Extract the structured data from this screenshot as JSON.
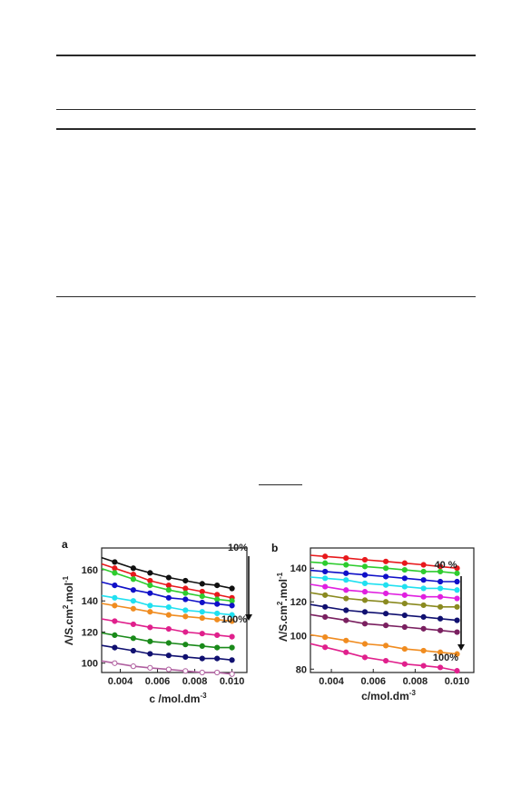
{
  "chart_data": [
    {
      "type": "scatter",
      "panel_label": "a",
      "xlabel": "c /mol.dm",
      "xlabel_sup": "-3",
      "ylabel_parts": [
        "Λ/S.cm",
        "2",
        ".mol",
        "-1"
      ],
      "xlim": [
        0.003,
        0.0108
      ],
      "ylim": [
        94,
        174
      ],
      "xticks": [
        "0.004",
        "0.006",
        "0.008",
        "0.010"
      ],
      "xtick_values": [
        0.004,
        0.006,
        0.008,
        0.01
      ],
      "yticks": [
        "100",
        "120",
        "140",
        "160"
      ],
      "ytick_values": [
        100,
        120,
        140,
        160
      ],
      "x": [
        0.0037,
        0.0047,
        0.0056,
        0.0066,
        0.0075,
        0.0084,
        0.0092,
        0.01
      ],
      "annotation_top": "10%",
      "annotation_bottom": "100%",
      "series": [
        {
          "color": "#111111",
          "fill": "filled",
          "values": [
            165,
            161,
            158,
            155,
            153,
            151,
            150,
            148
          ]
        },
        {
          "color": "#e8191c",
          "fill": "filled",
          "values": [
            161,
            157,
            153,
            150,
            148,
            146,
            144,
            142
          ]
        },
        {
          "color": "#2ecc2e",
          "fill": "filled",
          "values": [
            158,
            154,
            150,
            147,
            145,
            143,
            141,
            140
          ]
        },
        {
          "color": "#1010c8",
          "fill": "filled",
          "values": [
            150,
            147,
            145,
            142,
            141,
            139,
            138,
            137
          ]
        },
        {
          "color": "#20e0f0",
          "fill": "filled",
          "values": [
            142,
            140,
            137,
            136,
            134,
            133,
            132,
            131
          ]
        },
        {
          "color": "#f08c20",
          "fill": "filled",
          "values": [
            137,
            135,
            133,
            131,
            130,
            129,
            128,
            127
          ]
        },
        {
          "color": "#e0208c",
          "fill": "filled",
          "values": [
            127,
            125,
            123,
            122,
            120,
            119,
            118,
            117
          ]
        },
        {
          "color": "#1a8a1a",
          "fill": "filled",
          "values": [
            118,
            116,
            114,
            113,
            112,
            111,
            110,
            110
          ]
        },
        {
          "color": "#101070",
          "fill": "filled",
          "values": [
            110,
            108,
            106,
            105,
            104,
            103,
            103,
            102
          ]
        },
        {
          "color": "#b060a0",
          "fill": "open",
          "values": [
            100,
            98,
            97,
            96,
            95,
            94,
            94,
            93
          ]
        }
      ]
    },
    {
      "type": "scatter",
      "panel_label": "b",
      "xlabel": "c/mol.dm",
      "xlabel_sup": "-3",
      "ylabel_parts": [
        "Λ/S.cm",
        "2",
        ".mol",
        "-1"
      ],
      "xlim": [
        0.003,
        0.0108
      ],
      "ylim": [
        78,
        152
      ],
      "xticks": [
        "0.004",
        "0.006",
        "0.008",
        "0.010"
      ],
      "xtick_values": [
        0.004,
        0.006,
        0.008,
        0.01
      ],
      "yticks": [
        "80",
        "100",
        "120",
        "140"
      ],
      "ytick_values": [
        80,
        100,
        120,
        140
      ],
      "x": [
        0.0037,
        0.0047,
        0.0056,
        0.0066,
        0.0075,
        0.0084,
        0.0092,
        0.01
      ],
      "annotation_top": "40 %",
      "annotation_bottom": "100%",
      "series": [
        {
          "color": "#e8191c",
          "fill": "filled",
          "values": [
            147,
            146,
            145,
            144,
            143,
            142,
            141,
            140
          ]
        },
        {
          "color": "#2ecc2e",
          "fill": "filled",
          "values": [
            143,
            142,
            141,
            140,
            139,
            138,
            138,
            137
          ]
        },
        {
          "color": "#1010c8",
          "fill": "filled",
          "values": [
            138,
            137,
            136,
            135,
            134,
            133,
            132,
            132
          ]
        },
        {
          "color": "#20e0f0",
          "fill": "filled",
          "values": [
            134,
            133,
            131,
            130,
            129,
            128,
            128,
            127
          ]
        },
        {
          "color": "#e020e0",
          "fill": "filled",
          "values": [
            129,
            127,
            126,
            125,
            124,
            123,
            123,
            122
          ]
        },
        {
          "color": "#8a8a20",
          "fill": "filled",
          "values": [
            124,
            122,
            121,
            120,
            119,
            118,
            117,
            117
          ]
        },
        {
          "color": "#101070",
          "fill": "filled",
          "values": [
            117,
            115,
            114,
            113,
            112,
            111,
            110,
            109
          ]
        },
        {
          "color": "#7a2060",
          "fill": "filled",
          "values": [
            111,
            109,
            107,
            106,
            105,
            104,
            103,
            102
          ]
        },
        {
          "color": "#f08c20",
          "fill": "filled",
          "values": [
            99,
            97,
            95,
            94,
            92,
            91,
            90,
            89
          ]
        },
        {
          "color": "#e0208c",
          "fill": "filled",
          "values": [
            93,
            90,
            87,
            85,
            83,
            82,
            81,
            79
          ]
        }
      ]
    }
  ]
}
